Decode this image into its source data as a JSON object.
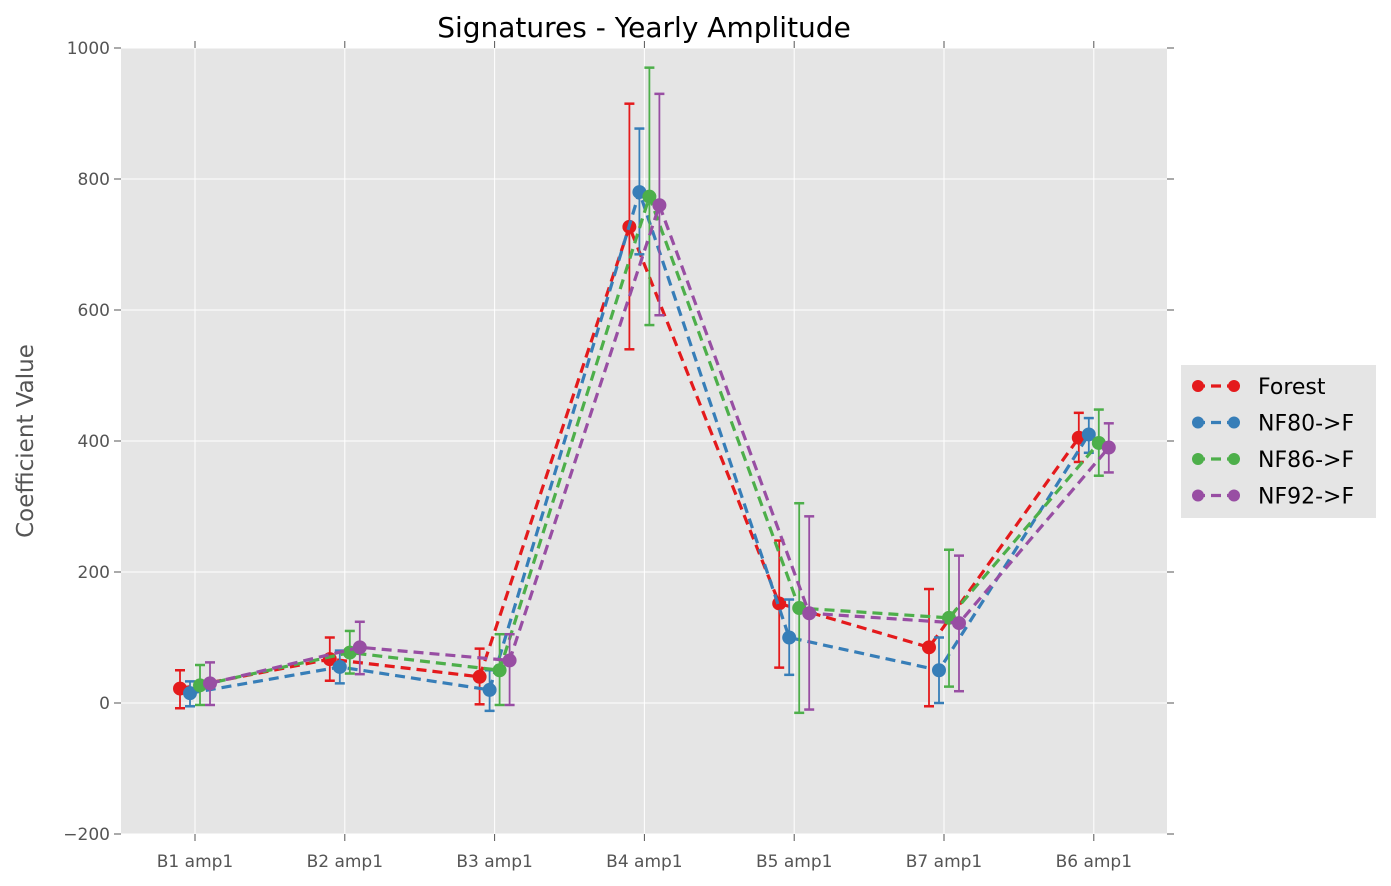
{
  "chart_data": {
    "type": "line",
    "title": "Signatures - Yearly Amplitude",
    "xlabel": "",
    "ylabel": "Coefficient Value",
    "categories": [
      "B1 amp1",
      "B2 amp1",
      "B3 amp1",
      "B4 amp1",
      "B5 amp1",
      "B7 amp1",
      "B6 amp1"
    ],
    "ylim": [
      -200,
      1000
    ],
    "yticks": [
      -200,
      0,
      200,
      400,
      600,
      800,
      1000
    ],
    "ytick_labels": [
      "−200",
      "0",
      "200",
      "400",
      "600",
      "800",
      "1000"
    ],
    "grid": true,
    "legend_position": "right, outside plot",
    "style": "dashed lines with circle markers and error bars",
    "series": [
      {
        "name": "Forest",
        "color": "#e41a1c",
        "values": [
          22,
          67,
          40,
          727,
          152,
          85,
          405
        ],
        "err_low": [
          -8,
          34,
          -2,
          540,
          54,
          -5,
          368
        ],
        "err_high": [
          50,
          100,
          83,
          915,
          248,
          174,
          443
        ]
      },
      {
        "name": "NF80->F",
        "color": "#377eb8",
        "values": [
          15,
          55,
          20,
          780,
          100,
          50,
          410
        ],
        "err_low": [
          -5,
          30,
          -12,
          685,
          43,
          0,
          382
        ],
        "err_high": [
          33,
          80,
          50,
          877,
          158,
          100,
          435
        ]
      },
      {
        "name": "NF86->F",
        "color": "#4daf4a",
        "values": [
          27,
          77,
          50,
          773,
          145,
          130,
          397
        ],
        "err_low": [
          -3,
          45,
          -3,
          577,
          -15,
          25,
          347
        ],
        "err_high": [
          58,
          110,
          105,
          970,
          305,
          234,
          448
        ]
      },
      {
        "name": "NF92->F",
        "color": "#984ea3",
        "values": [
          30,
          85,
          65,
          760,
          137,
          122,
          390
        ],
        "err_low": [
          -3,
          44,
          -3,
          592,
          -10,
          18,
          352
        ],
        "err_high": [
          62,
          124,
          105,
          930,
          285,
          225,
          427
        ]
      }
    ]
  },
  "colors": {
    "plot_background": "#e5e5e5",
    "legend_background": "#e5e5e5",
    "grid": "#ffffff",
    "tick_text": "#555555"
  }
}
